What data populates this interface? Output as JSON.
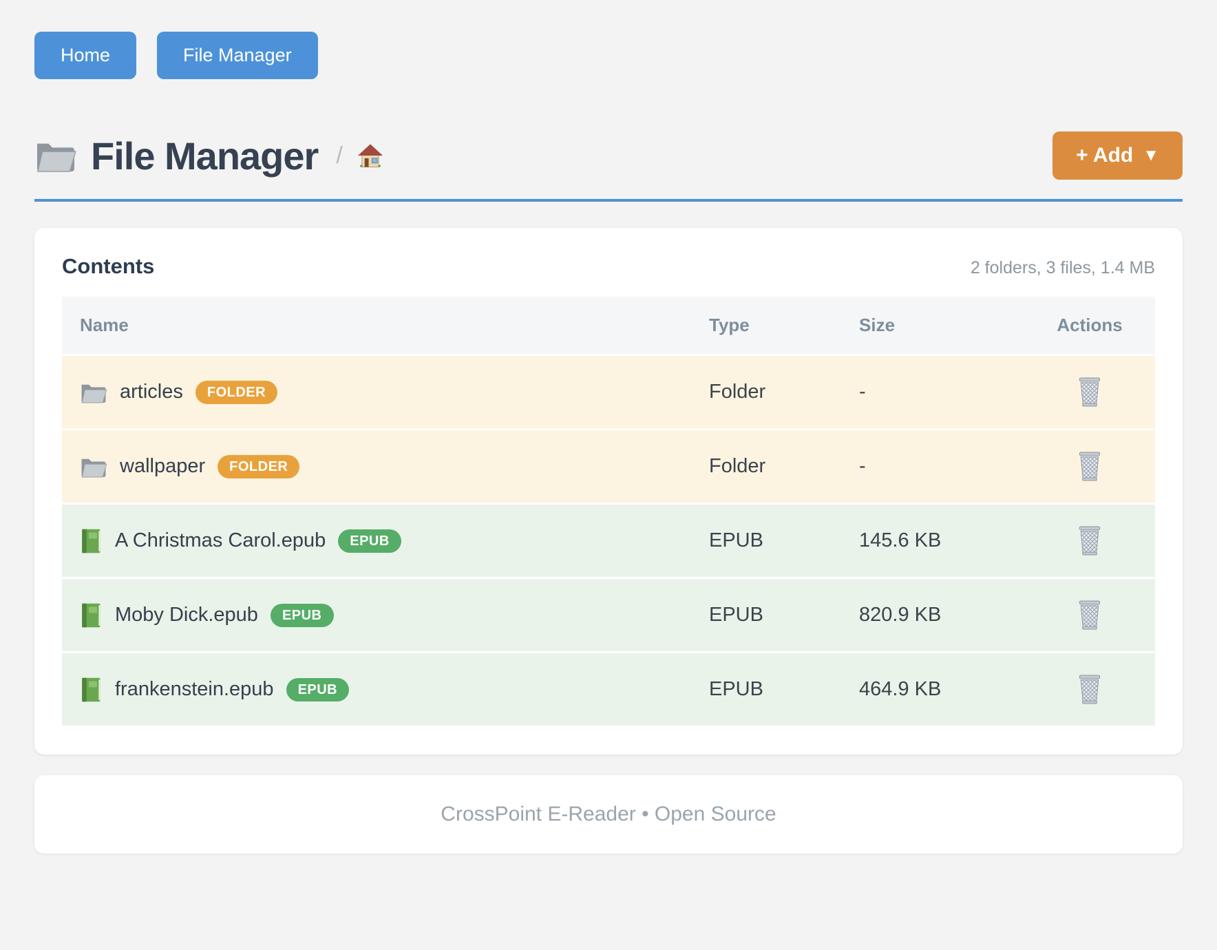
{
  "nav": {
    "buttons": [
      {
        "label": "Home"
      },
      {
        "label": "File Manager"
      }
    ]
  },
  "header": {
    "title": "File Manager",
    "title_icon": "folder-icon",
    "breadcrumb_separator": "/",
    "breadcrumb_home_icon": "house-icon",
    "add_button_label": "+ Add",
    "add_button_caret": "▼"
  },
  "contents": {
    "title": "Contents",
    "summary": "2 folders, 3 files, 1.4 MB",
    "table": {
      "columns": [
        "Name",
        "Type",
        "Size",
        "Actions"
      ],
      "rows": [
        {
          "name": "articles",
          "badge": "FOLDER",
          "type": "Folder",
          "size": "-",
          "kind": "folder",
          "icon": "folder-icon",
          "action_icon": "trash-icon"
        },
        {
          "name": "wallpaper",
          "badge": "FOLDER",
          "type": "Folder",
          "size": "-",
          "kind": "folder",
          "icon": "folder-icon",
          "action_icon": "trash-icon"
        },
        {
          "name": "A Christmas Carol.epub",
          "badge": "EPUB",
          "type": "EPUB",
          "size": "145.6 KB",
          "kind": "epub",
          "icon": "book-icon",
          "action_icon": "trash-icon"
        },
        {
          "name": "Moby Dick.epub",
          "badge": "EPUB",
          "type": "EPUB",
          "size": "820.9 KB",
          "kind": "epub",
          "icon": "book-icon",
          "action_icon": "trash-icon"
        },
        {
          "name": "frankenstein.epub",
          "badge": "EPUB",
          "type": "EPUB",
          "size": "464.9 KB",
          "kind": "epub",
          "icon": "book-icon",
          "action_icon": "trash-icon"
        }
      ]
    }
  },
  "footer": {
    "text": "CrossPoint E-Reader • Open Source"
  },
  "colors": {
    "page_background": "#f3f3f4",
    "primary_blue": "#4d92d8",
    "accent_orange": "#dc8c3e",
    "folder_badge": "#e9a23b",
    "epub_badge": "#56ad68",
    "folder_row_background": "#fcf4e1",
    "epub_row_background": "#e9f3ea",
    "heading_text": "#364152",
    "muted_text": "#8e979e"
  }
}
